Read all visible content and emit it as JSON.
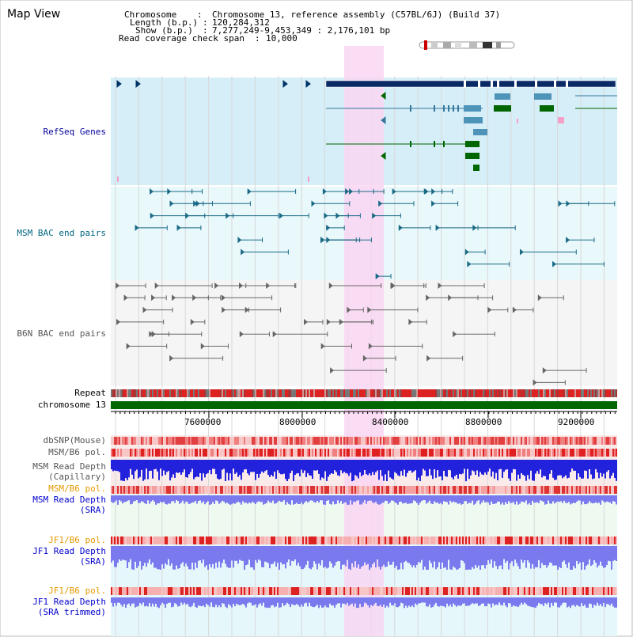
{
  "title": "Map View",
  "header": {
    "chromosome_label": "Chromosome",
    "chromosome_value": "Chromosome 13, reference assembly (C57BL/6J) (Build 37)",
    "length_label": "Length (b.p.)",
    "length_value": "120,284,312",
    "show_label": "Show (b.p.)",
    "show_value": "7,277,249-9,453,349 : 2,176,101 bp",
    "coverage_label": "Read coverage check span",
    "coverage_value": "10,000"
  },
  "tracks": {
    "refseq": "RefSeq Genes",
    "msm_bac": "MSM BAC end pairs",
    "b6n_bac": "B6N BAC end pairs",
    "repeat": "Repeat",
    "chromosome": "chromosome 13",
    "dbsnp": "dbSNP(Mouse)",
    "msm_b6_pol": "MSM/B6 pol.",
    "msm_depth_cap_1": "MSM Read Depth",
    "msm_depth_cap_2": "(Capillary)",
    "msm_b6_pol_2": "MSM/B6 pol.",
    "msm_depth_sra_1": "MSM Read Depth",
    "msm_depth_sra_2": "(SRA)",
    "jf1_b6_pol": "JF1/B6 pol.",
    "jf1_depth_sra_1": "JF1 Read Depth",
    "jf1_depth_sra_2": "(SRA)",
    "jf1_b6_pol_2": "JF1/B6 pol.",
    "jf1_depth_trim_1": "JF1 Read Depth",
    "jf1_depth_trim_2": "(SRA trimmed)"
  },
  "axis": {
    "ticks": [
      "7600000",
      "8000000",
      "8400000",
      "8800000",
      "9200000"
    ]
  },
  "colors": {
    "refseq_label": "#000099",
    "msm_label": "#006680",
    "b6n_label": "#555555",
    "orange_label": "#e69900",
    "blue_label": "#0000cc",
    "highlight": "#f9d6f2",
    "chromosome_bar": "#006600"
  }
}
